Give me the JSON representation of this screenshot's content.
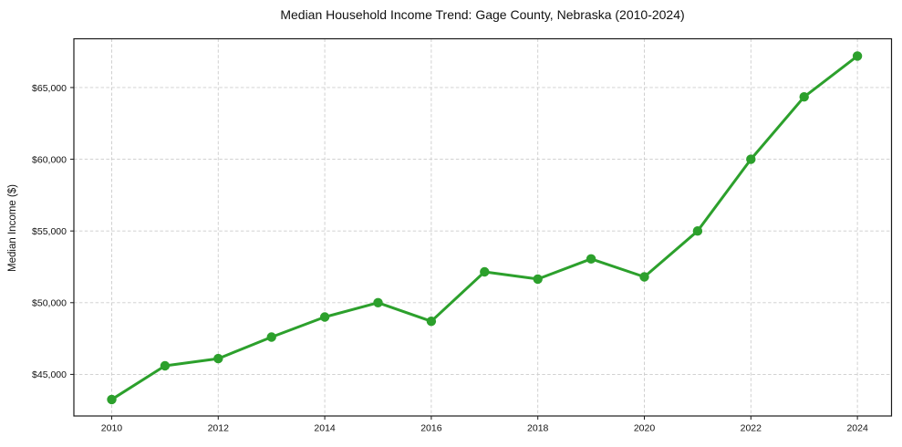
{
  "figure": {
    "title": "Median Household Income Trend: Gage County, Nebraska (2010-2024)"
  },
  "chart_data": {
    "type": "line",
    "title": "Median Household Income Trend: Gage County, Nebraska (2010-2024)",
    "xlabel": "",
    "ylabel": "Median Income ($)",
    "x": [
      2010,
      2011,
      2012,
      2013,
      2014,
      2015,
      2016,
      2017,
      2018,
      2019,
      2020,
      2021,
      2022,
      2023,
      2024
    ],
    "series": [
      {
        "name": "Median Household Income",
        "values": [
          43250,
          45600,
          46100,
          47600,
          49000,
          50000,
          48700,
          52150,
          51650,
          53050,
          51800,
          55000,
          60000,
          64350,
          67200
        ]
      }
    ],
    "xticks": {
      "values": [
        2010,
        2012,
        2014,
        2016,
        2018,
        2020,
        2022,
        2024
      ],
      "labels": [
        "2010",
        "2012",
        "2014",
        "2016",
        "2018",
        "2020",
        "2022",
        "2024"
      ]
    },
    "yticks": {
      "values": [
        45000,
        50000,
        55000,
        60000,
        65000
      ],
      "labels": [
        "$45,000",
        "$50,000",
        "$55,000",
        "$60,000",
        "$65,000"
      ]
    },
    "xlim": [
      2009.29,
      2024.64
    ],
    "ylim": [
      42100,
      68400
    ],
    "grid": true,
    "grid_style": "dashed",
    "legend_position": "none",
    "style": {
      "line_color": "#2ca02c",
      "marker": "circle",
      "marker_size": 5.2,
      "line_width": 3,
      "grid_color": "#cccccc",
      "grid_dash": "3.5 2.4",
      "spine_color": "#1a1a1a",
      "tick_color": "#1a1a1a",
      "text_color": "#111111",
      "background": "#ffffff"
    }
  }
}
